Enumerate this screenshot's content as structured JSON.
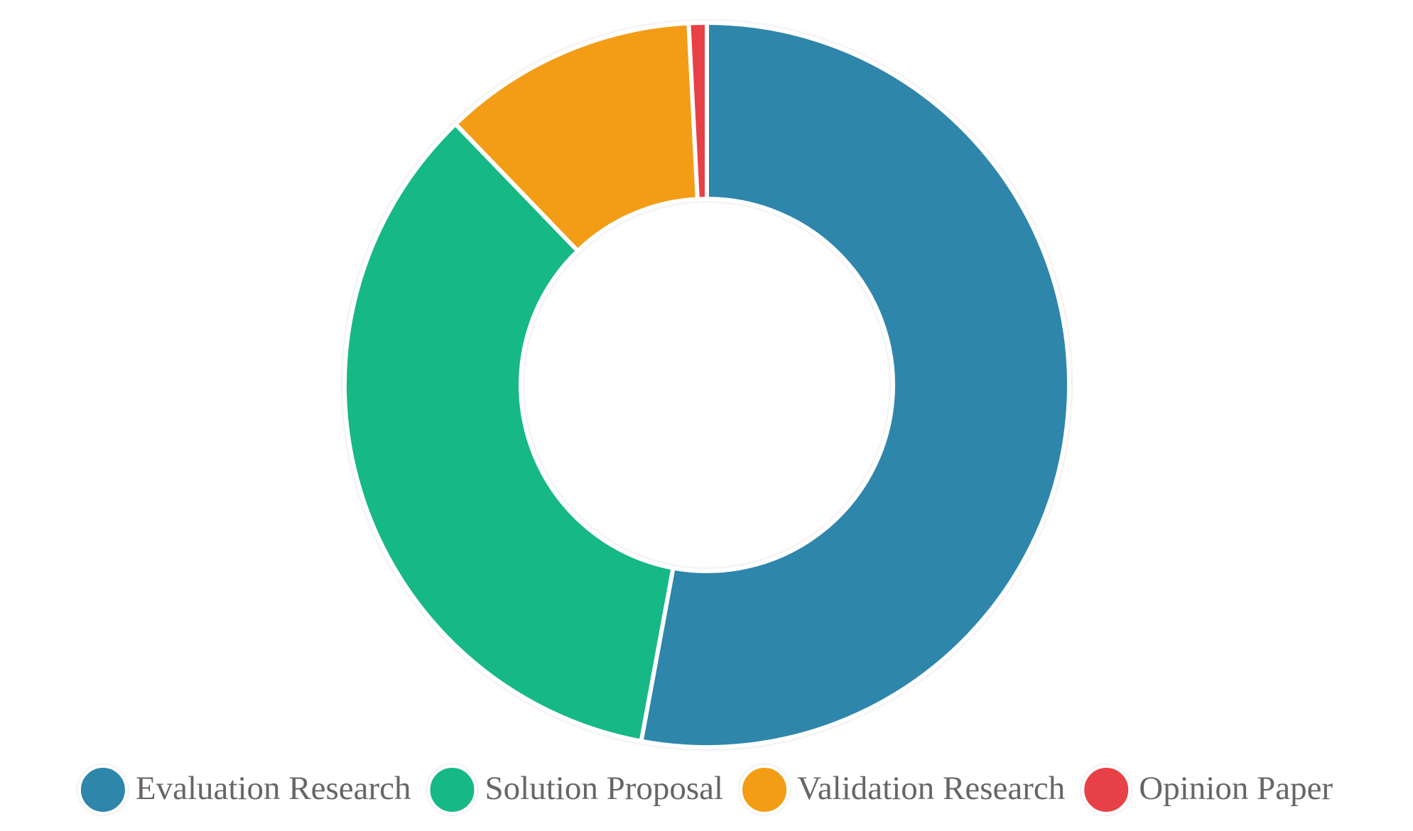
{
  "chart_data": {
    "type": "donut",
    "categories": [
      "Evaluation Research",
      "Solution Proposal",
      "Validation Research",
      "Opinion Paper"
    ],
    "values": [
      52.9,
      34.9,
      11.4,
      0.8
    ],
    "colors": [
      "#2e86ab",
      "#12b886",
      "#f39c12",
      "#e84147"
    ],
    "legend": "bottom"
  }
}
